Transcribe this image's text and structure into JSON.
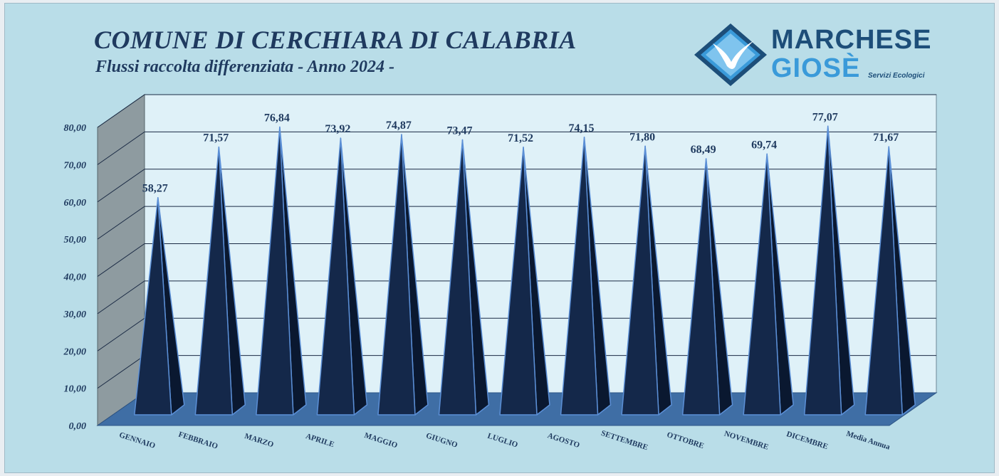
{
  "header": {
    "title": "COMUNE DI CERCHIARA DI CALABRIA",
    "subtitle": "Flussi raccolta differenziata - Anno 2024 -"
  },
  "logo": {
    "line1": "MARCHESE",
    "line2": "GIOSÈ",
    "tagline": "Servizi Ecologici",
    "icon": "seagull-diamond-icon",
    "colors": {
      "dark": "#1d4e79",
      "light": "#3a9ad9"
    }
  },
  "chart_data": {
    "type": "bar",
    "title": "COMUNE DI CERCHIARA DI CALABRIA",
    "subtitle": "Flussi raccolta differenziata - Anno 2024 -",
    "categories": [
      "GENNAIO",
      "FEBBRAIO",
      "MARZO",
      "APRILE",
      "MAGGIO",
      "GIUGNO",
      "LUGLIO",
      "AGOSTO",
      "SETTEMBRE",
      "OTTOBRE",
      "NOVEMBRE",
      "DICEMBRE",
      "Media Annua"
    ],
    "values": [
      58.27,
      71.57,
      76.84,
      73.92,
      74.87,
      73.47,
      71.52,
      74.15,
      71.8,
      68.49,
      69.74,
      77.07,
      71.67
    ],
    "value_labels": [
      "58,27",
      "71,57",
      "76,84",
      "73,92",
      "74,87",
      "73,47",
      "71,52",
      "74,15",
      "71,80",
      "68,49",
      "69,74",
      "77,07",
      "71,67"
    ],
    "yticks": [
      "0,00",
      "10,00",
      "20,00",
      "30,00",
      "40,00",
      "50,00",
      "60,00",
      "70,00",
      "80,00"
    ],
    "ylim": [
      0,
      80
    ],
    "xlabel": "",
    "ylabel": "",
    "bar_shape": "pyramid",
    "grid": true,
    "legend": "none",
    "colors": {
      "bar_front": "#14284a",
      "bar_side": "#0a1830",
      "bar_edge": "#5b8fd6",
      "floor": "#3f6ea5",
      "back_wall": "#dff1f8",
      "side_wall": "#8e9ba0",
      "gridline": "#1a2a44",
      "text": "#1f3a5f"
    }
  }
}
